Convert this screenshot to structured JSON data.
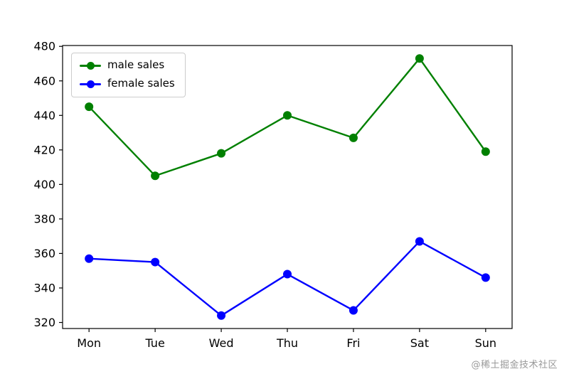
{
  "chart_data": {
    "type": "line",
    "title": "",
    "xlabel": "",
    "ylabel": "",
    "categories": [
      "Mon",
      "Tue",
      "Wed",
      "Thu",
      "Fri",
      "Sat",
      "Sun"
    ],
    "series": [
      {
        "name": "male sales",
        "color": "#008000",
        "values": [
          445,
          405,
          418,
          440,
          427,
          473,
          419
        ]
      },
      {
        "name": "female sales",
        "color": "#0000ff",
        "values": [
          357,
          355,
          324,
          348,
          327,
          367,
          346
        ]
      }
    ],
    "yticks": [
      320,
      340,
      360,
      380,
      400,
      420,
      440,
      460,
      480
    ],
    "ylim": [
      316.5,
      480.5
    ],
    "grid": false,
    "legend_position": "upper left",
    "marker": "circle",
    "axis_color": "#000000"
  },
  "watermark": "@稀土掘金技术社区"
}
